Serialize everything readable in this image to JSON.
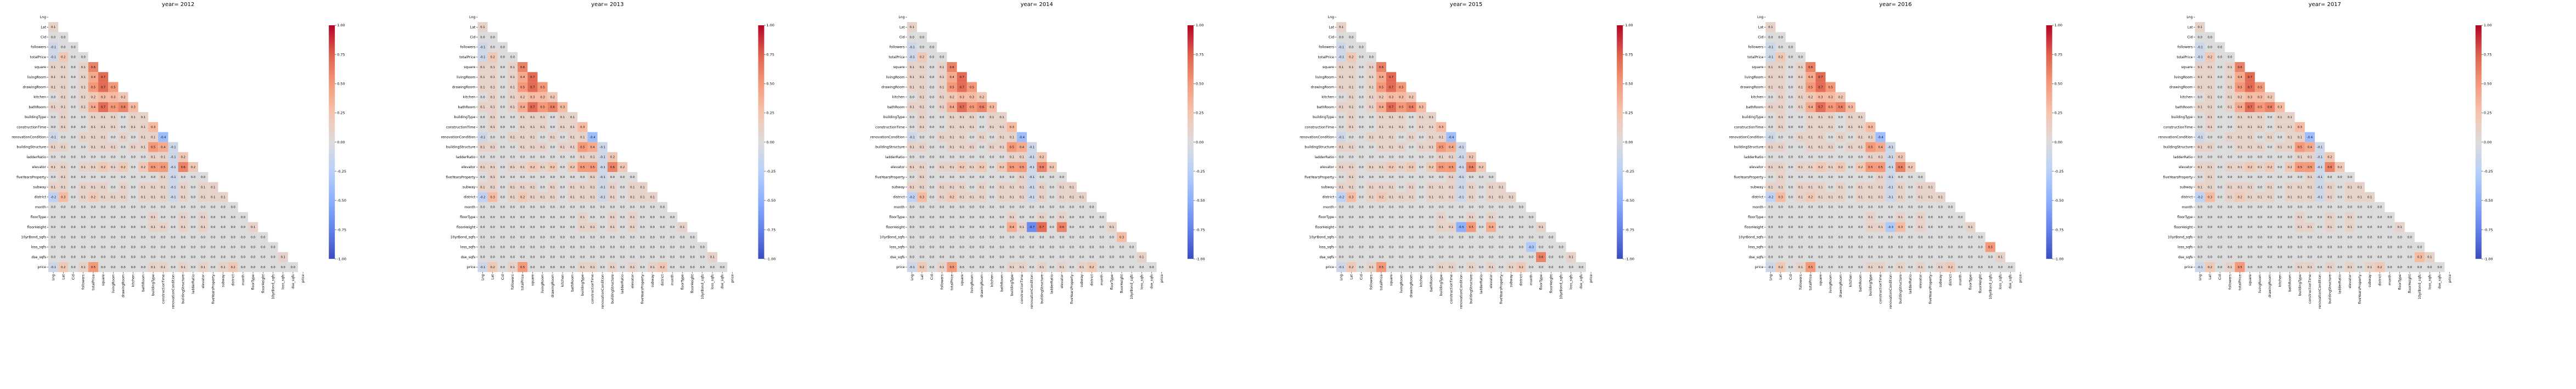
{
  "chart_data": {
    "type": "heatmap",
    "layout": "six triangular correlation heatmaps side by side",
    "mask": "upper triangle masked, diagonal hidden",
    "colormap": "coolwarm",
    "color_range": [
      -1.0,
      1.0
    ],
    "colorbar_ticks": [
      "1.00",
      "0.75",
      "0.50",
      "0.25",
      "0.00",
      "-0.25",
      "-0.50",
      "-0.75",
      "-1.00"
    ],
    "variables": [
      "Lng",
      "Lat",
      "Cid",
      "followers",
      "totalPrice",
      "square",
      "livingRoom",
      "drawingRoom",
      "kitchen",
      "bathRoom",
      "buildingType",
      "constructionTime",
      "renovationCondition",
      "buildingStructure",
      "ladderRatio",
      "elevator",
      "fiveYearsProperty",
      "subway",
      "district",
      "month",
      "floorType",
      "floorHeight",
      "10yrBond_sqfs",
      "loss_sqfs",
      "dse_sqfs",
      "price"
    ],
    "base_correlations": [
      [],
      [
        0.1
      ],
      [
        -0.0,
        0.0
      ],
      [
        -0.1,
        0.0,
        0.0
      ],
      [
        -0.1,
        0.2,
        0.0,
        0.0
      ],
      [
        0.1,
        0.1,
        0.0,
        0.1,
        0.6
      ],
      [
        0.1,
        0.1,
        0.0,
        0.1,
        0.4,
        0.7
      ],
      [
        0.1,
        0.1,
        0.0,
        0.1,
        0.5,
        0.7,
        0.5
      ],
      [
        0.0,
        0.1,
        0.0,
        0.1,
        0.2,
        0.3,
        0.3,
        0.2
      ],
      [
        0.1,
        0.1,
        0.0,
        0.1,
        0.4,
        0.7,
        0.5,
        0.6,
        0.3
      ],
      [
        0.0,
        0.1,
        0.0,
        0.0,
        0.1,
        0.1,
        0.1,
        0.0,
        0.1,
        0.1
      ],
      [
        0.0,
        0.1,
        0.0,
        0.0,
        0.1,
        0.1,
        0.1,
        0.0,
        0.1,
        0.1,
        0.3
      ],
      [
        -0.1,
        0.0,
        0.0,
        0.1,
        0.1,
        0.1,
        0.0,
        0.1,
        0.0,
        0.1,
        0.1,
        -0.4
      ],
      [
        0.1,
        0.1,
        0.0,
        0.0,
        0.1,
        0.1,
        0.1,
        0.0,
        0.1,
        0.1,
        0.5,
        0.4,
        -0.1
      ],
      [
        0.0,
        0.0,
        0.0,
        0.0,
        0.0,
        0.0,
        0.0,
        0.0,
        0.0,
        0.0,
        0.1,
        0.1,
        -0.1,
        0.2
      ],
      [
        0.1,
        0.1,
        0.0,
        0.1,
        0.1,
        0.2,
        0.1,
        0.2,
        0.0,
        0.2,
        0.5,
        0.5,
        -0.1,
        0.6,
        0.2
      ],
      [
        0.0,
        0.1,
        0.0,
        0.0,
        0.0,
        0.0,
        0.0,
        0.0,
        0.0,
        0.0,
        0.0,
        0.1,
        -0.1,
        0.0,
        0.0,
        0.0
      ],
      [
        0.1,
        0.1,
        0.0,
        0.1,
        0.1,
        0.1,
        0.0,
        0.1,
        0.0,
        0.1,
        0.1,
        0.1,
        -0.1,
        0.1,
        0.0,
        0.1,
        0.1
      ],
      [
        -0.2,
        0.3,
        0.0,
        0.1,
        0.2,
        0.1,
        0.1,
        0.1,
        0.0,
        0.1,
        0.1,
        0.1,
        -0.1,
        0.1,
        0.0,
        0.1,
        0.1,
        0.1
      ],
      [
        0.0,
        0.0,
        0.0,
        0.0,
        0.0,
        0.0,
        0.0,
        0.0,
        0.0,
        0.0,
        0.0,
        0.0,
        0.0,
        0.0,
        0.0,
        0.0,
        0.0,
        0.0,
        0.0
      ],
      [
        0.0,
        0.0,
        0.0,
        0.0,
        0.0,
        0.0,
        0.0,
        0.0,
        0.0,
        0.0,
        0.1,
        0.0,
        0.0,
        0.1,
        0.0,
        0.1,
        0.0,
        0.0,
        0.0,
        0.0
      ],
      [
        0.0,
        0.0,
        0.0,
        0.0,
        0.0,
        0.0,
        0.0,
        0.0,
        0.0,
        0.0,
        0.1,
        0.1,
        0.0,
        0.1,
        0.0,
        0.1,
        0.0,
        0.0,
        0.0,
        0.0,
        0.1
      ],
      [
        0.0,
        0.0,
        0.0,
        0.0,
        0.0,
        0.0,
        0.0,
        0.0,
        0.0,
        0.0,
        0.0,
        0.0,
        0.0,
        0.0,
        0.0,
        0.0,
        0.0,
        0.0,
        0.0,
        0.0,
        0.0,
        0.0
      ],
      [
        0.0,
        0.0,
        0.0,
        0.0,
        0.0,
        0.0,
        0.0,
        0.0,
        0.0,
        0.0,
        0.0,
        0.0,
        0.0,
        0.0,
        0.0,
        0.0,
        0.0,
        0.0,
        0.0,
        0.0,
        0.0,
        0.0,
        0.0
      ],
      [
        0.0,
        0.0,
        0.0,
        0.0,
        0.0,
        0.0,
        0.0,
        0.0,
        0.0,
        0.0,
        0.0,
        0.0,
        0.0,
        0.0,
        0.0,
        0.0,
        0.0,
        0.0,
        0.0,
        0.0,
        0.0,
        0.0,
        0.0,
        0.1
      ],
      [
        -0.1,
        0.2,
        0.0,
        0.1,
        0.5,
        0.0,
        0.0,
        0.0,
        0.0,
        0.0,
        0.1,
        0.1,
        0.0,
        0.1,
        0.0,
        0.1,
        0.0,
        0.1,
        0.2,
        0.0,
        0.0,
        0.0,
        0.0,
        0.0,
        0.0
      ]
    ],
    "panels": [
      {
        "title": "year= 2012",
        "overrides": []
      },
      {
        "title": "year= 2013",
        "overrides": []
      },
      {
        "title": "year= 2014",
        "overrides": [
          [
            21,
            12,
            -0.7
          ],
          [
            21,
            13,
            0.7
          ],
          [
            21,
            15,
            0.6
          ],
          [
            21,
            10,
            0.4
          ],
          [
            19,
            15,
            0.0
          ],
          [
            22,
            21,
            0.3
          ]
        ]
      },
      {
        "title": "year= 2015",
        "overrides": [
          [
            21,
            12,
            -0.5
          ],
          [
            21,
            13,
            0.5
          ],
          [
            21,
            15,
            0.4
          ],
          [
            23,
            19,
            -0.3
          ],
          [
            24,
            20,
            0.6
          ]
        ]
      },
      {
        "title": "year= 2016",
        "overrides": [
          [
            21,
            12,
            -0.3
          ],
          [
            21,
            13,
            0.3
          ],
          [
            23,
            22,
            0.5
          ]
        ]
      },
      {
        "title": "year= 2017",
        "overrides": [
          [
            24,
            22,
            0.3
          ]
        ]
      }
    ]
  }
}
